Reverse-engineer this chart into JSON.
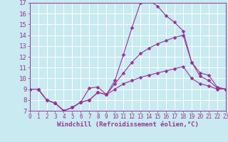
{
  "xlabel": "Windchill (Refroidissement éolien,°C)",
  "background_color": "#c8eaf0",
  "grid_color": "#ffffff",
  "line_color": "#993399",
  "xlim": [
    0,
    23
  ],
  "ylim": [
    7,
    17
  ],
  "yticks": [
    7,
    8,
    9,
    10,
    11,
    12,
    13,
    14,
    15,
    16,
    17
  ],
  "xticks": [
    0,
    1,
    2,
    3,
    4,
    5,
    6,
    7,
    8,
    9,
    10,
    11,
    12,
    13,
    14,
    15,
    16,
    17,
    18,
    19,
    20,
    21,
    22,
    23
  ],
  "series": [
    {
      "x": [
        0,
        1,
        2,
        3,
        4,
        5,
        6,
        7,
        8,
        9,
        10,
        11,
        12,
        13,
        14,
        15,
        16,
        17,
        18,
        19,
        20,
        21,
        22,
        23
      ],
      "y": [
        9.0,
        9.0,
        8.0,
        7.7,
        7.0,
        7.3,
        7.8,
        8.0,
        8.7,
        8.5,
        9.8,
        12.2,
        14.7,
        17.0,
        17.2,
        16.7,
        15.8,
        15.2,
        14.4,
        11.5,
        10.2,
        9.8,
        9.1,
        9.0
      ]
    },
    {
      "x": [
        0,
        1,
        2,
        3,
        4,
        5,
        6,
        7,
        8,
        9,
        10,
        11,
        12,
        13,
        14,
        15,
        16,
        17,
        18,
        19,
        20,
        21,
        22,
        23
      ],
      "y": [
        9.0,
        9.0,
        8.0,
        7.7,
        7.0,
        7.3,
        7.8,
        9.1,
        9.2,
        8.5,
        9.5,
        10.5,
        11.5,
        12.3,
        12.8,
        13.2,
        13.5,
        13.8,
        14.0,
        11.5,
        10.5,
        10.3,
        9.2,
        9.0
      ]
    },
    {
      "x": [
        0,
        1,
        2,
        3,
        4,
        5,
        6,
        7,
        8,
        9,
        10,
        11,
        12,
        13,
        14,
        15,
        16,
        17,
        18,
        19,
        20,
        21,
        22,
        23
      ],
      "y": [
        9.0,
        9.0,
        8.0,
        7.7,
        7.0,
        7.3,
        7.8,
        8.0,
        8.7,
        8.5,
        9.0,
        9.5,
        9.8,
        10.1,
        10.3,
        10.5,
        10.7,
        10.9,
        11.1,
        10.0,
        9.5,
        9.3,
        9.0,
        9.0
      ]
    }
  ],
  "xlabel_fontsize": 6.5,
  "ytick_fontsize": 6.5,
  "xtick_fontsize": 5.5,
  "line_width": 0.8,
  "markersize": 2.5
}
